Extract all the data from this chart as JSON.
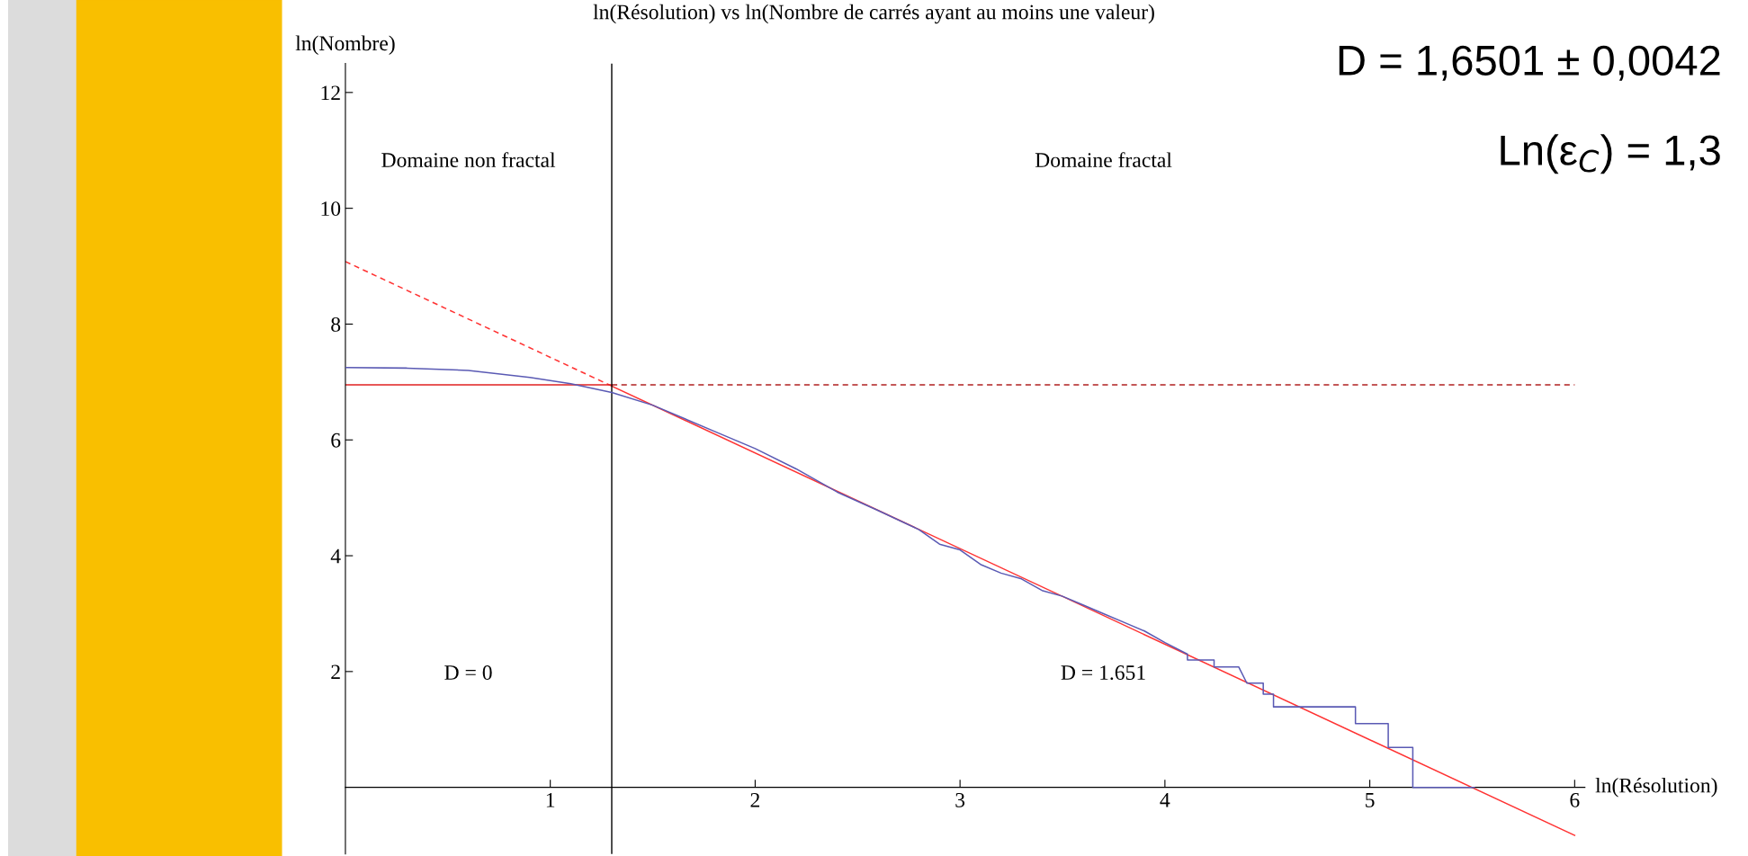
{
  "chart_data": {
    "type": "line",
    "title": "ln(Résolution) vs ln(Nombre de carrés ayant au moins une valeur)",
    "xlabel": "ln(Résolution)",
    "ylabel": "ln(Nombre)",
    "xlim": [
      0,
      6.05
    ],
    "ylim": [
      -1.15,
      12.5
    ],
    "xticks": [
      1,
      2,
      3,
      4,
      5,
      6
    ],
    "yticks": [
      2,
      4,
      6,
      8,
      10,
      12
    ],
    "grid": false,
    "series": [
      {
        "color": "#5a5ab4",
        "line_style": "solid",
        "x": [
          0,
          0.3,
          0.6,
          0.9,
          1.1,
          1.3,
          1.5,
          1.8,
          2.0,
          2.2,
          2.4,
          2.6,
          2.8,
          2.9,
          3.0,
          3.1,
          3.2,
          3.3,
          3.4,
          3.5,
          3.6,
          3.7,
          3.8,
          3.9,
          4.0,
          4.11,
          4.11,
          4.24,
          4.24,
          4.36,
          4.4,
          4.48,
          4.48,
          4.53,
          4.53,
          4.93,
          4.93,
          5.09,
          5.09,
          5.21,
          5.21,
          5.51
        ],
        "values": [
          7.25,
          7.24,
          7.2,
          7.08,
          6.97,
          6.82,
          6.6,
          6.15,
          5.85,
          5.5,
          5.1,
          4.78,
          4.45,
          4.2,
          4.1,
          3.85,
          3.7,
          3.6,
          3.4,
          3.3,
          3.15,
          3.0,
          2.85,
          2.7,
          2.5,
          2.3,
          2.2,
          2.2,
          2.08,
          2.08,
          1.8,
          1.8,
          1.61,
          1.61,
          1.39,
          1.39,
          1.1,
          1.1,
          0.69,
          0.69,
          0,
          0
        ]
      },
      {
        "color": "#ff3333",
        "line_style": "dashed",
        "x": [
          0,
          1.3
        ],
        "values": [
          9.08,
          6.93
        ]
      },
      {
        "color": "#ff3333",
        "line_style": "solid",
        "x": [
          1.3,
          6
        ],
        "values": [
          6.93,
          -0.83
        ]
      },
      {
        "color": "#e02020",
        "line_style": "solid",
        "x": [
          0,
          1.3
        ],
        "values": [
          6.95,
          6.95
        ]
      },
      {
        "color": "#b02020",
        "line_style": "dashed",
        "x": [
          1.3,
          6
        ],
        "values": [
          6.95,
          6.95
        ]
      }
    ],
    "ref_lines": [
      {
        "axis": "x",
        "value": 1.3,
        "color": "#000000"
      }
    ],
    "annotations": [
      "Domaine non fractal",
      "Domaine fractal",
      "D = 0",
      "D = 1.651",
      "D = 1,6501 ± 0,0042",
      "Ln(ε$_{C}$) = 1,3"
    ]
  }
}
